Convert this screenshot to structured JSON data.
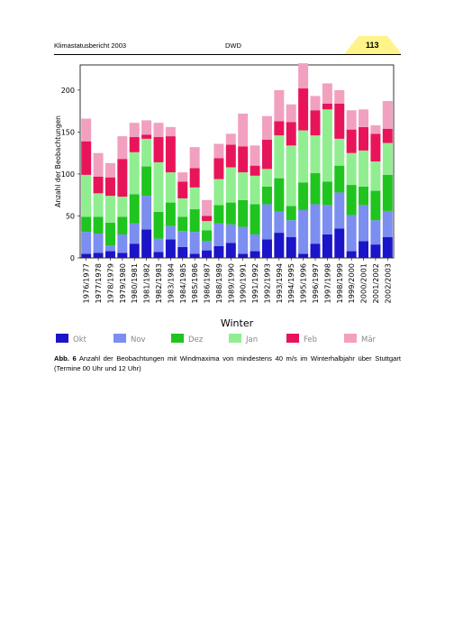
{
  "header": {
    "left_text": "Klimastatusbericht 2003",
    "center_text": "DWD",
    "page_number": "113",
    "tab_color": "#fff38a"
  },
  "caption": {
    "label": "Abb. 6",
    "text": "Anzahl der Beobachtungen mit Windmaxima von mindestens 40 m/s im Winterhalbjahr über Stuttgart (Termine 00 Uhr und 12 Uhr)"
  },
  "chart_data": {
    "type": "bar",
    "stacked": true,
    "ylabel": "Anzahl der Beobachtungen",
    "xlabel": "Winter",
    "ylim": [
      0,
      230
    ],
    "yticks": [
      0,
      50,
      100,
      150,
      200
    ],
    "grid": false,
    "legend_position": "bottom",
    "categories": [
      "1976/1977",
      "1977/1978",
      "1978/1979",
      "1979/1980",
      "1980/1981",
      "1981/1982",
      "1982/1983",
      "1983/1984",
      "1984/1985",
      "1985/1986",
      "1986/1987",
      "1988/1989",
      "1989/1990",
      "1990/1991",
      "1991/1992",
      "1992/1993",
      "1993/1994",
      "1994/1995",
      "1995/1996",
      "1996/1997",
      "1997/1998",
      "1998/1999",
      "1999/2000",
      "2000/2001",
      "2001/2002",
      "2002/2003"
    ],
    "series": [
      {
        "name": "Okt",
        "color": "#1c14c8",
        "values": [
          5,
          6,
          8,
          6,
          17,
          34,
          7,
          22,
          13,
          5,
          9,
          14,
          18,
          5,
          8,
          22,
          30,
          25,
          5,
          17,
          28,
          35,
          8,
          20,
          16,
          25
        ]
      },
      {
        "name": "Nov",
        "color": "#7c8ef0",
        "values": [
          26,
          23,
          7,
          22,
          24,
          40,
          16,
          16,
          19,
          26,
          11,
          27,
          22,
          32,
          20,
          42,
          25,
          20,
          52,
          47,
          35,
          43,
          43,
          43,
          29,
          31
        ]
      },
      {
        "name": "Dez",
        "color": "#1fc41f",
        "values": [
          18,
          20,
          27,
          21,
          35,
          35,
          32,
          28,
          17,
          27,
          13,
          22,
          26,
          32,
          36,
          21,
          40,
          17,
          33,
          37,
          28,
          32,
          36,
          22,
          35,
          43
        ]
      },
      {
        "name": "Jan",
        "color": "#90ee90",
        "values": [
          50,
          28,
          32,
          24,
          50,
          33,
          59,
          36,
          22,
          26,
          11,
          31,
          42,
          33,
          34,
          21,
          51,
          72,
          62,
          45,
          86,
          32,
          38,
          43,
          35,
          38
        ]
      },
      {
        "name": "Feb",
        "color": "#e8145a",
        "values": [
          40,
          20,
          22,
          45,
          18,
          5,
          30,
          43,
          20,
          23,
          6,
          25,
          27,
          31,
          12,
          35,
          17,
          28,
          50,
          30,
          7,
          42,
          28,
          28,
          33,
          17
        ]
      },
      {
        "name": "Mär",
        "color": "#f2a0c0",
        "values": [
          27,
          28,
          17,
          27,
          17,
          17,
          17,
          11,
          11,
          25,
          19,
          17,
          13,
          39,
          24,
          28,
          37,
          21,
          30,
          17,
          24,
          16,
          23,
          21,
          10,
          33
        ]
      }
    ]
  }
}
